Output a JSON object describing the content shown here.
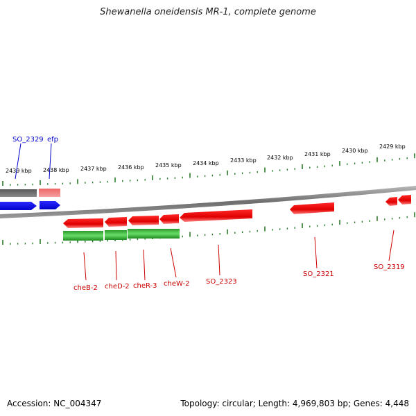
{
  "title": "Shewanella oneidensis MR-1, complete genome",
  "footer": {
    "accession": "Accession: NC_004347",
    "topology": "Topology: circular; Length: 4,969,803 bp; Genes: 4,448"
  },
  "scale_labels": [
    "2439 kbp",
    "2438 kbp",
    "2437 kbp",
    "2436 kbp",
    "2435 kbp",
    "2434 kbp",
    "2433 kbp",
    "2432 kbp",
    "2431 kbp",
    "2430 kbp",
    "2429 kbp"
  ],
  "upper_genes": [
    {
      "name": "SO_2329"
    },
    {
      "name": "efp"
    }
  ],
  "lower_genes": [
    {
      "name": "cheB-2"
    },
    {
      "name": "cheD-2"
    },
    {
      "name": "cheR-3"
    },
    {
      "name": "cheW-2"
    },
    {
      "name": "SO_2323"
    },
    {
      "name": "SO_2321"
    },
    {
      "name": "SO_2319"
    }
  ],
  "colors": {
    "forward_gene": "#0000ee",
    "forward_gene_other": "#ee7777",
    "forward_rna": "#606060",
    "reverse_gene": "#ee0000",
    "reverse_green": "#22aa22",
    "axis": "#808080",
    "tick": "#2a7a2a"
  }
}
